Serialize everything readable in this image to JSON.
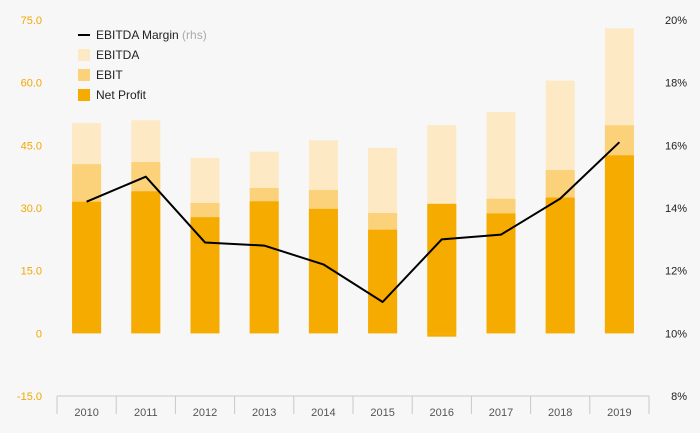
{
  "chart_data": {
    "type": "bar",
    "stacked_overlay": true,
    "categories": [
      "2010",
      "2011",
      "2012",
      "2013",
      "2014",
      "2015",
      "2016",
      "2017",
      "2018",
      "2019"
    ],
    "series": [
      {
        "name": "EBITDA",
        "axis": "left",
        "color": "#fde9c3",
        "values": [
          50.3,
          51.0,
          42.0,
          43.5,
          46.2,
          44.4,
          49.8,
          53.0,
          60.5,
          73.0
        ]
      },
      {
        "name": "EBIT",
        "axis": "left",
        "color": "#fbd27a",
        "values": [
          40.5,
          41.0,
          31.2,
          34.8,
          34.3,
          28.8,
          30.5,
          32.2,
          39.1,
          49.8
        ]
      },
      {
        "name": "Net Profit",
        "axis": "left",
        "color": "#f5ab00",
        "values": [
          31.5,
          34.0,
          27.8,
          31.6,
          29.8,
          24.8,
          31.0,
          28.7,
          32.5,
          42.6
        ]
      },
      {
        "name": "EBITDA Margin",
        "name_suffix": "(rhs)",
        "axis": "right",
        "type": "line",
        "color": "#000000",
        "values": [
          14.2,
          15.0,
          12.9,
          12.8,
          12.2,
          11.0,
          13.0,
          13.15,
          14.3,
          16.1
        ]
      }
    ],
    "extra_bars": [
      {
        "category": "2016",
        "series": "Net Profit",
        "value": -0.8
      }
    ],
    "left_axis": {
      "ticks": [
        "75.0",
        "60.0",
        "45.0",
        "30.0",
        "15.0",
        "0",
        "-15.0"
      ],
      "tick_values": [
        75,
        60,
        45,
        30,
        15,
        0,
        -15
      ],
      "ylim": [
        -15,
        75
      ]
    },
    "right_axis": {
      "ticks": [
        "20%",
        "18%",
        "16%",
        "14%",
        "12%",
        "10%",
        "8%"
      ],
      "tick_values": [
        20,
        18,
        16,
        14,
        12,
        10,
        8
      ],
      "ylim": [
        8,
        20
      ]
    },
    "legend_placement": "top-left",
    "grid": false,
    "title": "",
    "xlabel": "",
    "ylabel": ""
  },
  "colors": {
    "background": "#f7f7f7",
    "left_tick": "#f0a800",
    "right_tick": "#222222",
    "axis_line": "#c8c8c8"
  }
}
